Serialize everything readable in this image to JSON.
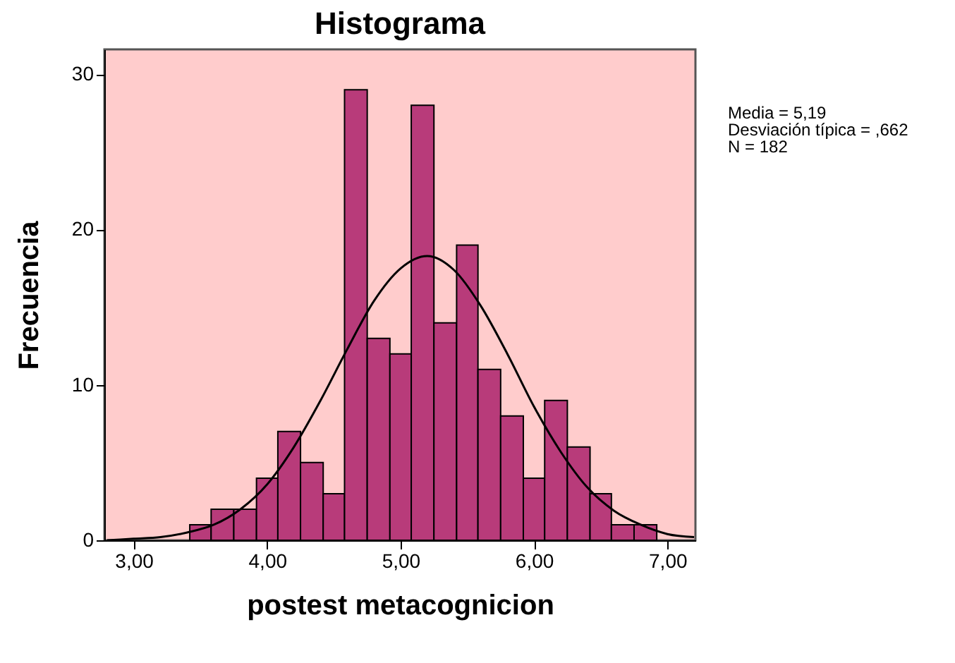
{
  "chart_data": {
    "type": "histogram",
    "title": "Histograma",
    "xlabel": "postest metacognicion",
    "ylabel": "Frecuencia",
    "bins": [
      3.42,
      3.58,
      3.75,
      3.92,
      4.08,
      4.25,
      4.42,
      4.58,
      4.75,
      4.92,
      5.08,
      5.25,
      5.42,
      5.58,
      5.75,
      5.92,
      6.08,
      6.25,
      6.42,
      6.58,
      6.75,
      6.92
    ],
    "values": [
      1,
      2,
      2,
      4,
      7,
      5,
      3,
      29,
      13,
      12,
      28,
      14,
      19,
      11,
      8,
      4,
      9,
      6,
      3,
      1,
      1
    ],
    "color": "#b83b7a",
    "series": [
      {
        "type": "line",
        "color": "#000000",
        "x": [
          2.8,
          3.0,
          3.2,
          3.4,
          3.6,
          3.8,
          4.0,
          4.2,
          4.4,
          4.6,
          4.8,
          5.0,
          5.2,
          5.4,
          5.6,
          5.8,
          6.0,
          6.2,
          6.4,
          6.6,
          6.8,
          7.0,
          7.2
        ],
        "values": [
          0.0,
          0.1,
          0.2,
          0.5,
          1.0,
          2.0,
          3.6,
          6.0,
          9.0,
          12.3,
          15.4,
          17.5,
          18.3,
          17.4,
          15.1,
          12.0,
          8.6,
          5.7,
          3.4,
          1.9,
          1.0,
          0.4,
          0.2
        ]
      }
    ],
    "xlim": [
      2.78,
      7.21
    ],
    "ylim": [
      0,
      31.6
    ],
    "xticks": [
      {
        "value": 3,
        "label": "3,00"
      },
      {
        "value": 4,
        "label": "4,00"
      },
      {
        "value": 5,
        "label": "5,00"
      },
      {
        "value": 6,
        "label": "6,00"
      },
      {
        "value": 7,
        "label": "7,00"
      }
    ],
    "yticks": [
      0,
      10,
      20,
      30
    ],
    "grid": false,
    "annotations": [
      "Media = 5,19",
      "Desviación típica = ,662",
      "N = 182"
    ]
  }
}
